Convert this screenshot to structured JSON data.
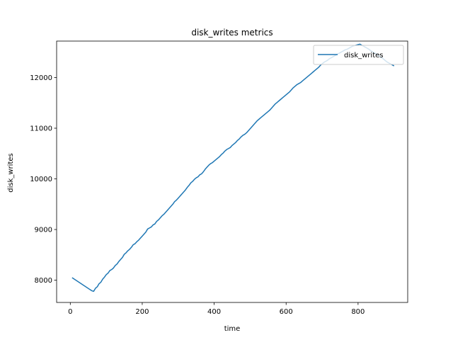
{
  "chart_data": {
    "type": "line",
    "title": "disk_writes metrics",
    "xlabel": "time",
    "ylabel": "disk_writes",
    "xlim": [
      -38,
      938
    ],
    "ylim": [
      7560,
      12720
    ],
    "x_ticks": [
      0,
      200,
      400,
      600,
      800
    ],
    "y_ticks": [
      8000,
      9000,
      10000,
      11000,
      12000
    ],
    "grid": false,
    "legend": {
      "position": "top-right",
      "entries": [
        "disk_writes"
      ]
    },
    "series": [
      {
        "name": "disk_writes",
        "color": "#1f77b4",
        "x": [
          5,
          60,
          65,
          70,
          75,
          80,
          85,
          90,
          95,
          100,
          105,
          110,
          115,
          120,
          125,
          130,
          135,
          140,
          145,
          150,
          155,
          160,
          165,
          170,
          175,
          180,
          185,
          190,
          195,
          200,
          205,
          210,
          215,
          220,
          225,
          230,
          235,
          240,
          245,
          250,
          255,
          260,
          265,
          270,
          275,
          280,
          285,
          290,
          295,
          300,
          305,
          310,
          315,
          320,
          325,
          330,
          335,
          340,
          345,
          350,
          355,
          360,
          365,
          370,
          375,
          380,
          385,
          390,
          395,
          400,
          405,
          410,
          415,
          420,
          425,
          430,
          435,
          440,
          445,
          450,
          455,
          460,
          465,
          470,
          475,
          480,
          485,
          490,
          495,
          500,
          505,
          510,
          515,
          520,
          525,
          530,
          535,
          540,
          545,
          550,
          555,
          560,
          565,
          570,
          575,
          580,
          585,
          590,
          595,
          600,
          605,
          610,
          615,
          620,
          625,
          630,
          635,
          640,
          645,
          650,
          655,
          660,
          665,
          670,
          675,
          680,
          685,
          690,
          695,
          700,
          705,
          710,
          715,
          720,
          725,
          730,
          735,
          740,
          745,
          750,
          755,
          760,
          765,
          770,
          775,
          780,
          785,
          790,
          795,
          800,
          805,
          810,
          815,
          820,
          825,
          830,
          835,
          840,
          845,
          850,
          855,
          860,
          865,
          870,
          875,
          880,
          885,
          890,
          895,
          900
        ],
        "values": [
          8050,
          7790,
          7780,
          7840,
          7870,
          7930,
          7960,
          8020,
          8060,
          8110,
          8140,
          8190,
          8210,
          8240,
          8290,
          8320,
          8370,
          8410,
          8450,
          8510,
          8540,
          8580,
          8610,
          8650,
          8700,
          8720,
          8760,
          8790,
          8830,
          8870,
          8910,
          8950,
          9010,
          9030,
          9050,
          9090,
          9110,
          9160,
          9190,
          9230,
          9270,
          9300,
          9340,
          9380,
          9420,
          9460,
          9500,
          9550,
          9580,
          9620,
          9660,
          9700,
          9740,
          9780,
          9830,
          9870,
          9920,
          9950,
          9990,
          10020,
          10040,
          10080,
          10100,
          10140,
          10190,
          10230,
          10270,
          10300,
          10320,
          10350,
          10380,
          10410,
          10440,
          10480,
          10510,
          10550,
          10580,
          10600,
          10620,
          10660,
          10690,
          10720,
          10760,
          10790,
          10830,
          10860,
          10880,
          10910,
          10950,
          10990,
          11030,
          11070,
          11110,
          11150,
          11180,
          11210,
          11240,
          11270,
          11300,
          11330,
          11360,
          11400,
          11440,
          11480,
          11510,
          11540,
          11570,
          11600,
          11630,
          11660,
          11690,
          11720,
          11760,
          11800,
          11830,
          11860,
          11880,
          11900,
          11930,
          11960,
          11990,
          12020,
          12050,
          12080,
          12110,
          12140,
          12170,
          12200,
          12240,
          12270,
          12300,
          12320,
          12340,
          12370,
          12390,
          12410,
          12430,
          12450,
          12470,
          12490,
          12510,
          12530,
          12550,
          12560,
          12580,
          12600,
          12620,
          12630,
          12640,
          12650,
          12660,
          12640,
          12620,
          12600,
          12580,
          12560,
          12530,
          12510,
          12490,
          12470,
          12440,
          12420,
          12390,
          12370,
          12340,
          12310,
          12290,
          12270,
          12250,
          12230
        ]
      }
    ]
  }
}
